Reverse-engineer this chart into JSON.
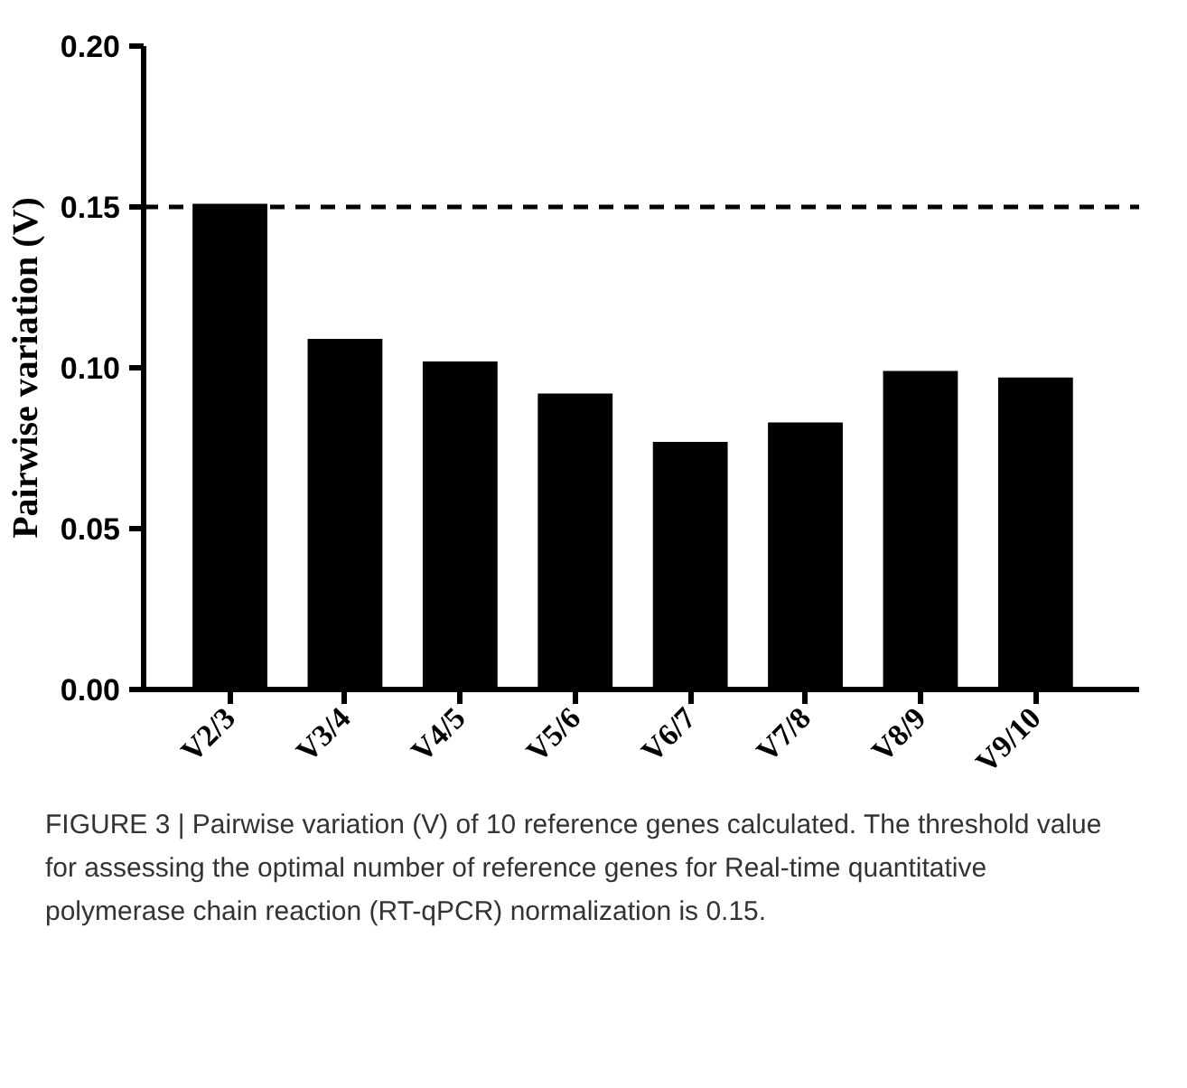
{
  "chart_data": {
    "type": "bar",
    "ylabel": "Pairwise variation (V)",
    "categories": [
      "V2/3",
      "V3/4",
      "V4/5",
      "V5/6",
      "V6/7",
      "V7/8",
      "V8/9",
      "V9/10"
    ],
    "values": [
      0.151,
      0.109,
      0.102,
      0.092,
      0.077,
      0.083,
      0.099,
      0.097
    ],
    "color": "#000000",
    "ylim": [
      0,
      0.2
    ],
    "yticks": [
      {
        "value": 0,
        "label": "0.00"
      },
      {
        "value": 0.05,
        "label": "0.05"
      },
      {
        "value": 0.1,
        "label": "0.10"
      },
      {
        "value": 0.15,
        "label": "0.15"
      },
      {
        "value": 0.2,
        "label": "0.20"
      }
    ],
    "grid": false,
    "ref_lines": [
      {
        "axis": "y",
        "value": 0.15,
        "color": "#000000",
        "line_style": "dashed"
      }
    ],
    "annotations": [
      "FIGURE 3 | Pairwise variation (V) of 10 reference genes calculated. The threshold value for assessing the optimal number of reference genes for Real-time quantitative polymerase chain reaction (RT-qPCR) normalization is 0.15."
    ]
  }
}
